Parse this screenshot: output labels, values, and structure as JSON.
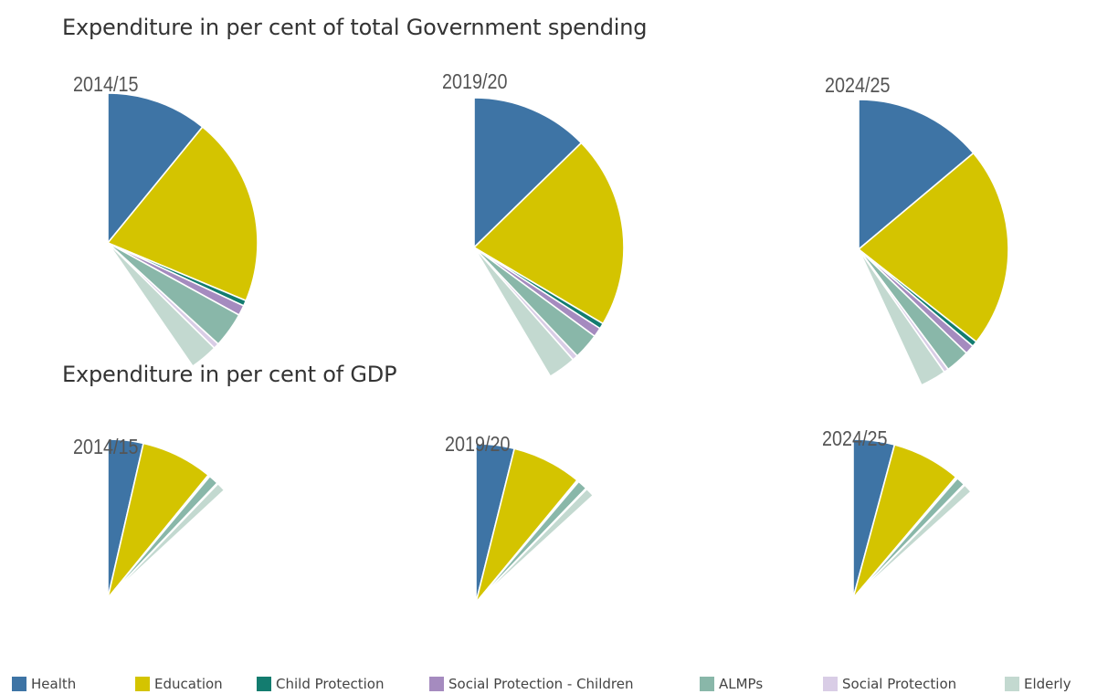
{
  "chart_data": [
    {
      "type": "pie",
      "title": "Expenditure in per cent of total Government spending",
      "panels": [
        {
          "label": "2014/15",
          "values": [
            10.9,
            20.4,
            0.6,
            1.1,
            3.8,
            0.6,
            3.0
          ]
        },
        {
          "label": "2019/20",
          "values": [
            12.7,
            20.8,
            0.6,
            1.0,
            2.8,
            0.6,
            3.0
          ]
        },
        {
          "label": "2024/25",
          "values": [
            13.9,
            21.7,
            0.6,
            1.0,
            2.6,
            0.5,
            2.8
          ]
        }
      ]
    },
    {
      "type": "pie",
      "title": "Expenditure in per cent of GDP",
      "panels": [
        {
          "label": "2014/15",
          "values": [
            3.6,
            7.3,
            0.1,
            0.1,
            1.0,
            0.1,
            0.9
          ]
        },
        {
          "label": "2019/20",
          "values": [
            3.9,
            7.1,
            0.1,
            0.1,
            1.0,
            0.1,
            0.9
          ]
        },
        {
          "label": "2024/25",
          "values": [
            4.2,
            7.0,
            0.1,
            0.1,
            0.9,
            0.1,
            0.9
          ]
        }
      ]
    }
  ],
  "legend": [
    {
      "label": "Health",
      "color": "#3e74a5"
    },
    {
      "label": "Education",
      "color": "#d4c400"
    },
    {
      "label": "Child Protection",
      "color": "#137c6f"
    },
    {
      "label": "Social  Protection - Children",
      "color": "#a58bbf"
    },
    {
      "label": "ALMPs",
      "color": "#89b7a9"
    },
    {
      "label": "Social  Protection",
      "color": "#d9cde6"
    },
    {
      "label": "Elderly",
      "color": "#c3d9d0"
    }
  ]
}
